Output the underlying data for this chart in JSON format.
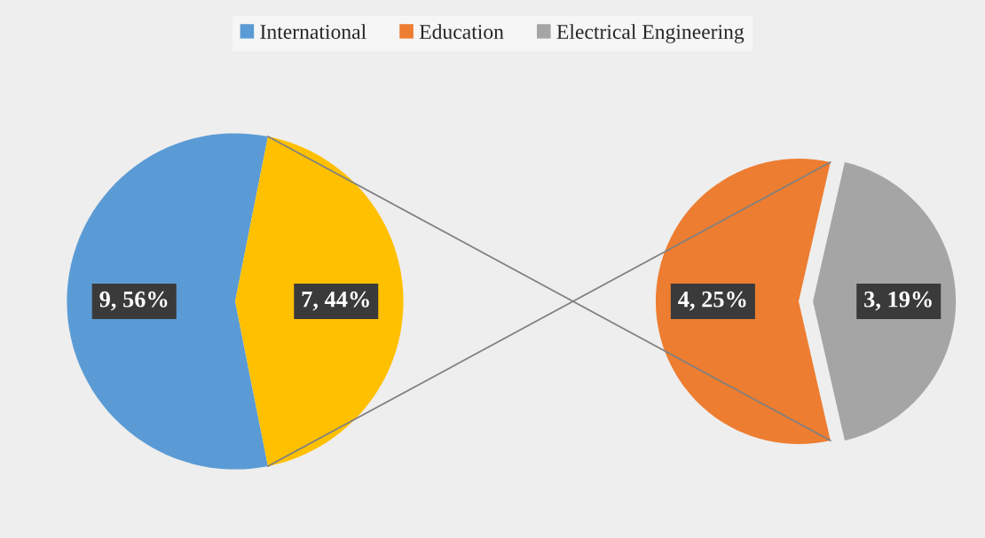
{
  "chart_data": [
    {
      "type": "pie",
      "categories": [
        "International",
        null
      ],
      "values": [
        9,
        7
      ],
      "colors": [
        "#5b9bd5",
        "#ffc000"
      ],
      "value_labels": [
        "9, 56%",
        "7, 44%"
      ],
      "legend": "top"
    },
    {
      "type": "pie",
      "categories": [
        "Education",
        "Electrical Engineering"
      ],
      "values": [
        4,
        3
      ],
      "colors": [
        "#ed7d31",
        "#a5a5a5"
      ],
      "value_labels": [
        "4, 25%",
        "3, 19%"
      ],
      "legend": "top"
    }
  ]
}
